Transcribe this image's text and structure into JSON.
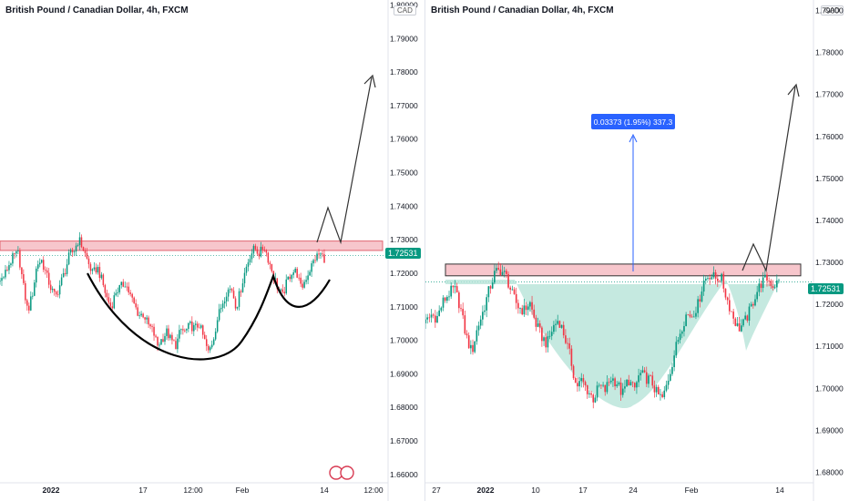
{
  "colors": {
    "up": "#089981",
    "down": "#f23645",
    "zone_fill": "#f7c6cc",
    "zone_stroke": "#e06470",
    "fill_area": "#b7e3d8",
    "measure": "#2962ff",
    "axis_text": "#131722"
  },
  "chart_data": [
    {
      "type": "candlestick",
      "title": "British Pound / Canadian Dollar, 4h, FXCM",
      "currency": "CAD",
      "last_price": "1.72531",
      "y_ticks": [
        "1.80000",
        "1.79000",
        "1.78000",
        "1.77000",
        "1.76000",
        "1.75000",
        "1.74000",
        "1.73000",
        "1.72000",
        "1.71000",
        "1.70000",
        "1.69000",
        "1.68000",
        "1.67000",
        "1.66000"
      ],
      "x_ticks": [
        "2022",
        "17",
        "12:00",
        "Feb",
        "14",
        "12:00"
      ],
      "ylim": [
        1.6575,
        1.8015
      ],
      "resistance_zone": [
        1.7268,
        1.7296
      ],
      "close_path": [
        1.7175,
        1.7195,
        1.7228,
        1.7252,
        1.7258,
        1.7165,
        1.7085,
        1.7138,
        1.7228,
        1.7238,
        1.7195,
        1.7155,
        1.7128,
        1.7168,
        1.7205,
        1.7255,
        1.7268,
        1.7302,
        1.7272,
        1.7232,
        1.7198,
        1.7218,
        1.7178,
        1.7128,
        1.7098,
        1.7145,
        1.7158,
        1.7172,
        1.7138,
        1.7105,
        1.7075,
        1.7078,
        1.7045,
        1.7028,
        1.6985,
        1.7005,
        1.7025,
        1.6998,
        1.6985,
        1.7032,
        1.7025,
        1.7045,
        1.7035,
        1.7048,
        1.7005,
        1.6962,
        1.7002,
        1.7068,
        1.7112,
        1.7148,
        1.7155,
        1.7098,
        1.7155,
        1.7212,
        1.7255,
        1.7275,
        1.7258,
        1.7282,
        1.7238,
        1.7195,
        1.7155,
        1.7132,
        1.7178,
        1.7205,
        1.7205,
        1.7152,
        1.7185,
        1.7215,
        1.7245,
        1.7258,
        1.7245
      ]
    },
    {
      "type": "candlestick",
      "title": "British Pound / Canadian Dollar, 4h, FXCM",
      "currency": "CAD",
      "last_price": "1.72531",
      "y_ticks": [
        "1.79000",
        "1.78000",
        "1.77000",
        "1.76000",
        "1.75000",
        "1.74000",
        "1.73000",
        "1.72000",
        "1.71000",
        "1.70000",
        "1.69000",
        "1.68000"
      ],
      "x_ticks": [
        "27",
        "2022",
        "10",
        "17",
        "24",
        "Feb",
        "14"
      ],
      "ylim": [
        1.6775,
        1.7925
      ],
      "resistance_zone": [
        1.7268,
        1.7296
      ],
      "measure_label": "0.03373 (1.95%) 337.3",
      "close_path": [
        1.7155,
        1.7175,
        1.7168,
        1.7205,
        1.7225,
        1.7238,
        1.7195,
        1.7125,
        1.7085,
        1.7145,
        1.7185,
        1.7235,
        1.7275,
        1.7282,
        1.7265,
        1.7222,
        1.7195,
        1.7185,
        1.7205,
        1.7155,
        1.7125,
        1.7105,
        1.7145,
        1.7165,
        1.7125,
        1.7075,
        1.7005,
        1.7018,
        1.6995,
        1.6975,
        1.7005,
        1.6995,
        1.7025,
        1.7015,
        1.6985,
        1.7022,
        1.6995,
        1.7035,
        1.7025,
        1.7018,
        1.6985,
        1.6975,
        1.7028,
        1.7085,
        1.7138,
        1.7175,
        1.7175,
        1.7198,
        1.7255,
        1.7272,
        1.7262,
        1.7265,
        1.7215,
        1.7175,
        1.7142,
        1.7155,
        1.7185,
        1.7225,
        1.7252,
        1.7262,
        1.7245,
        1.7253
      ]
    }
  ]
}
